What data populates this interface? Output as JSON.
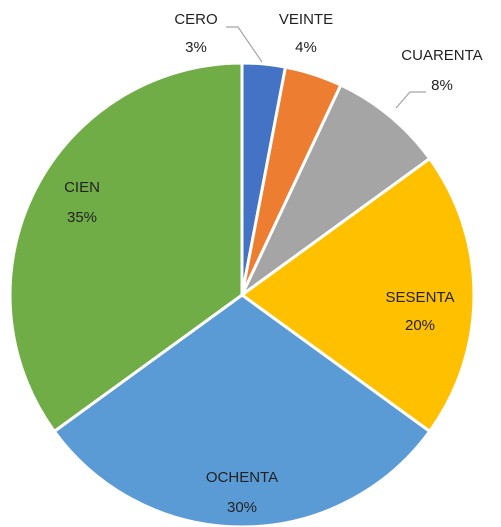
{
  "chart_data": {
    "type": "pie",
    "categories": [
      "CERO",
      "VEINTE",
      "CUARENTA",
      "SESENTA",
      "OCHENTA",
      "CIEN"
    ],
    "values": [
      3,
      4,
      8,
      20,
      30,
      35
    ],
    "value_labels": [
      "3%",
      "4%",
      "8%",
      "20%",
      "30%",
      "35%"
    ],
    "colors": [
      "#4472c4",
      "#ed7d31",
      "#a5a5a5",
      "#ffc000",
      "#5b9bd5",
      "#70ad47"
    ]
  }
}
